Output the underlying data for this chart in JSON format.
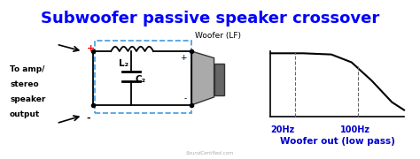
{
  "title": "Subwoofer passive speaker crossover",
  "title_color": "#0000FF",
  "title_fontsize": 13,
  "bg_color": "#FFFFFF",
  "left_label_lines": [
    "To amp/",
    "stereo",
    "speaker",
    "output"
  ],
  "plus_label": "+",
  "minus_label": "-",
  "plus_color": "#FF0000",
  "minus_color": "#000000",
  "L2_label": "L₂",
  "C2_label": "C₂",
  "woofer_lf_label": "Woofer (LF)",
  "freq_20": "20Hz",
  "freq_100": "100Hz",
  "woofer_out_label": "Woofer out (low pass)",
  "freq_label_color": "#0000CD",
  "dashed_box_color": "#4499DD",
  "wire_color": "#000000",
  "component_color": "#000000",
  "graph_line_color": "#000000",
  "watermark": "SoundCertified.com"
}
